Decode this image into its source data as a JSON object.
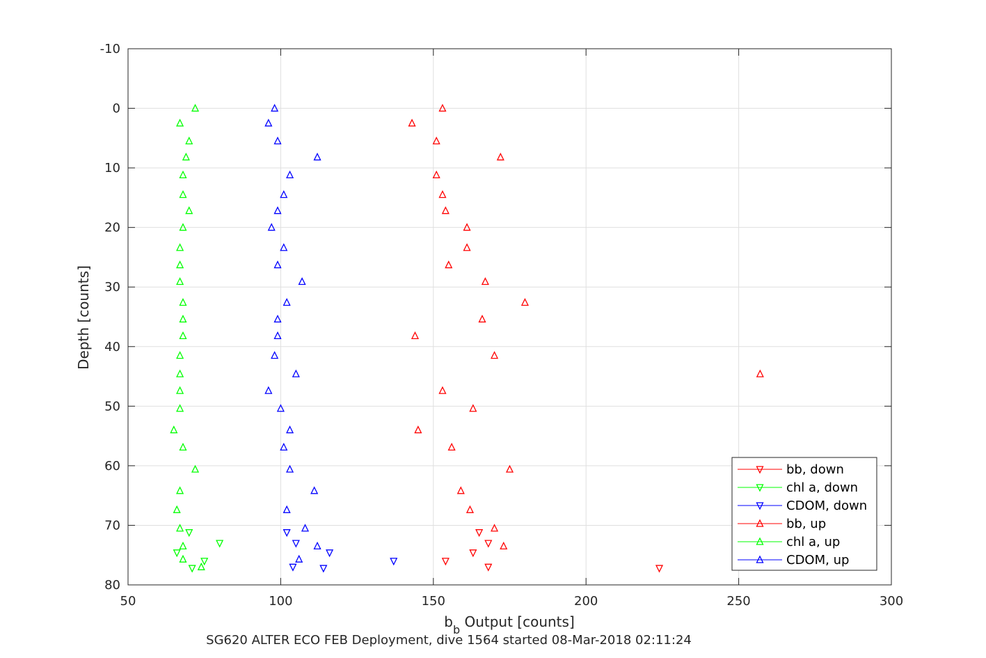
{
  "chart_data": {
    "type": "scatter",
    "xlabel_main": "b",
    "xlabel_sub": "b",
    "xlabel_rest": " Output [counts]",
    "ylabel": "Depth [counts]",
    "caption": "SG620 ALTER ECO FEB Deployment, dive 1564 started 08-Mar-2018 02:11:24",
    "xlim": [
      50,
      300
    ],
    "ylim": [
      -10,
      80
    ],
    "y_reversed": true,
    "grid": true,
    "legend_position": "bottom-right",
    "xticks": [
      50,
      100,
      150,
      200,
      250,
      300
    ],
    "xtick_labels": [
      "50",
      "100",
      "150",
      "200",
      "250",
      "300"
    ],
    "yticks": [
      -10,
      0,
      10,
      20,
      30,
      40,
      50,
      60,
      70,
      80
    ],
    "ytick_labels": [
      "-10",
      "0",
      "10",
      "20",
      "30",
      "40",
      "50",
      "60",
      "70",
      "80"
    ],
    "series": [
      {
        "name": "bb, down",
        "color": "#ff0000",
        "marker": "triangle-down",
        "points": [
          [
            165,
            71.2
          ],
          [
            168,
            73
          ],
          [
            163,
            74.6
          ],
          [
            154,
            76
          ],
          [
            168,
            77
          ],
          [
            224,
            77.2
          ]
        ]
      },
      {
        "name": "chl a, down",
        "color": "#00ff00",
        "marker": "triangle-down",
        "points": [
          [
            70,
            71.2
          ],
          [
            80,
            73
          ],
          [
            66,
            74.6
          ],
          [
            75,
            76
          ],
          [
            71,
            77.2
          ]
        ]
      },
      {
        "name": "CDOM, down",
        "color": "#0000ff",
        "marker": "triangle-down",
        "points": [
          [
            102,
            71.2
          ],
          [
            105,
            73
          ],
          [
            116,
            74.6
          ],
          [
            137,
            76
          ],
          [
            104,
            77
          ],
          [
            114,
            77.2
          ]
        ]
      },
      {
        "name": "bb, up",
        "color": "#ff0000",
        "marker": "triangle-up",
        "points": [
          [
            153,
            0
          ],
          [
            143,
            2.5
          ],
          [
            151,
            5.5
          ],
          [
            172,
            8.2
          ],
          [
            151,
            11.2
          ],
          [
            153,
            14.5
          ],
          [
            154,
            17.2
          ],
          [
            161,
            20
          ],
          [
            161,
            23.4
          ],
          [
            155,
            26.3
          ],
          [
            167,
            29.1
          ],
          [
            180,
            32.6
          ],
          [
            166,
            35.4
          ],
          [
            144,
            38.2
          ],
          [
            170,
            41.5
          ],
          [
            257,
            44.6
          ],
          [
            153,
            47.4
          ],
          [
            163,
            50.4
          ],
          [
            145,
            54
          ],
          [
            156,
            56.9
          ],
          [
            175,
            60.6
          ],
          [
            159,
            64.2
          ],
          [
            162,
            67.4
          ],
          [
            170,
            70.5
          ],
          [
            173,
            73.5
          ]
        ]
      },
      {
        "name": "chl a, up",
        "color": "#00ff00",
        "marker": "triangle-up",
        "points": [
          [
            72,
            0
          ],
          [
            67,
            2.5
          ],
          [
            70,
            5.5
          ],
          [
            69,
            8.2
          ],
          [
            68,
            11.2
          ],
          [
            68,
            14.5
          ],
          [
            70,
            17.2
          ],
          [
            68,
            20
          ],
          [
            67,
            23.4
          ],
          [
            67,
            26.3
          ],
          [
            67,
            29.1
          ],
          [
            68,
            32.6
          ],
          [
            68,
            35.4
          ],
          [
            68,
            38.2
          ],
          [
            67,
            41.5
          ],
          [
            67,
            44.6
          ],
          [
            67,
            47.4
          ],
          [
            67,
            50.4
          ],
          [
            65,
            54
          ],
          [
            68,
            56.9
          ],
          [
            72,
            60.6
          ],
          [
            67,
            64.2
          ],
          [
            66,
            67.4
          ],
          [
            67,
            70.5
          ],
          [
            68,
            73.5
          ],
          [
            68,
            75.7
          ],
          [
            74,
            77
          ]
        ]
      },
      {
        "name": "CDOM, up",
        "color": "#0000ff",
        "marker": "triangle-up",
        "points": [
          [
            98,
            0
          ],
          [
            96,
            2.5
          ],
          [
            99,
            5.5
          ],
          [
            112,
            8.2
          ],
          [
            103,
            11.2
          ],
          [
            101,
            14.5
          ],
          [
            99,
            17.2
          ],
          [
            97,
            20
          ],
          [
            101,
            23.4
          ],
          [
            99,
            26.3
          ],
          [
            107,
            29.1
          ],
          [
            102,
            32.6
          ],
          [
            99,
            35.4
          ],
          [
            99,
            38.2
          ],
          [
            98,
            41.5
          ],
          [
            105,
            44.6
          ],
          [
            96,
            47.4
          ],
          [
            100,
            50.4
          ],
          [
            103,
            54
          ],
          [
            101,
            56.9
          ],
          [
            103,
            60.6
          ],
          [
            111,
            64.2
          ],
          [
            102,
            67.4
          ],
          [
            108,
            70.5
          ],
          [
            112,
            73.5
          ],
          [
            106,
            75.7
          ]
        ]
      }
    ]
  }
}
